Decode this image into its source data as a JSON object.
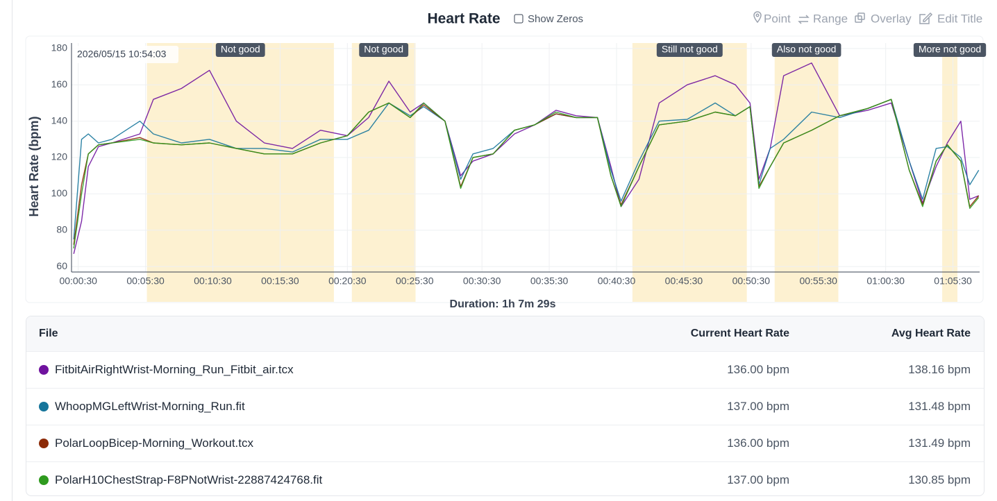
{
  "chart_data": {
    "type": "line",
    "title": "Heart Rate",
    "xlabel": "Duration: 1h 7m 29s",
    "ylabel": "Heart Rate (bpm)",
    "cursor_label": "2026/05/15 10:54:03",
    "xlim": [
      0,
      4049
    ],
    "ylim": [
      57,
      183
    ],
    "xticks": [
      {
        "value": 30,
        "label": "00:00:30"
      },
      {
        "value": 330,
        "label": "00:05:30"
      },
      {
        "value": 630,
        "label": "00:10:30"
      },
      {
        "value": 930,
        "label": "00:15:30"
      },
      {
        "value": 1230,
        "label": "00:20:30"
      },
      {
        "value": 1530,
        "label": "00:25:30"
      },
      {
        "value": 1830,
        "label": "00:30:30"
      },
      {
        "value": 2130,
        "label": "00:35:30"
      },
      {
        "value": 2430,
        "label": "00:40:30"
      },
      {
        "value": 2730,
        "label": "00:45:30"
      },
      {
        "value": 3030,
        "label": "00:50:30"
      },
      {
        "value": 3330,
        "label": "00:55:30"
      },
      {
        "value": 3630,
        "label": "01:00:30"
      },
      {
        "value": 3930,
        "label": "01:05:30"
      }
    ],
    "yticks": [
      60,
      80,
      100,
      120,
      140,
      160,
      180
    ],
    "grid": true,
    "annotations": [
      {
        "label": "Not good",
        "start": 336,
        "end": 1170
      },
      {
        "label": "Not good",
        "start": 1250,
        "end": 1534
      },
      {
        "label": "Still not good",
        "start": 2501,
        "end": 3011
      },
      {
        "label": "Also not good",
        "start": 3135,
        "end": 3419
      },
      {
        "label": "More not good",
        "start": 3882,
        "end": 3950
      }
    ],
    "x": [
      10,
      45,
      75,
      120,
      180,
      305,
      365,
      490,
      615,
      735,
      860,
      985,
      1110,
      1230,
      1325,
      1415,
      1510,
      1570,
      1665,
      1735,
      1790,
      1880,
      1975,
      2065,
      2160,
      2250,
      2345,
      2405,
      2450,
      2530,
      2620,
      2745,
      2870,
      2960,
      3025,
      3065,
      3115,
      3175,
      3300,
      3425,
      3550,
      3655,
      3735,
      3795,
      3855,
      3905,
      3965,
      4005,
      4045
    ],
    "series": [
      {
        "name": "FitbitAirRightWrist-Morning_Run_Fitbit_air.tcx",
        "color": "#6f129e",
        "values": [
          67,
          85,
          115,
          126,
          128,
          133,
          152,
          158,
          168,
          140,
          128,
          125,
          135,
          132,
          142,
          162,
          145,
          150,
          140,
          110,
          118,
          122,
          133,
          138,
          146,
          143,
          142,
          115,
          93,
          108,
          150,
          160,
          165,
          160,
          150,
          108,
          125,
          165,
          172,
          143,
          146,
          150,
          118,
          95,
          115,
          128,
          140,
          97,
          99
        ]
      },
      {
        "name": "WhoopMGLeftWrist-Morning_Run.fit",
        "color": "#16759b",
        "values": [
          75,
          130,
          133,
          128,
          130,
          140,
          133,
          128,
          130,
          125,
          125,
          123,
          130,
          130,
          135,
          150,
          143,
          148,
          140,
          108,
          122,
          125,
          135,
          138,
          144,
          142,
          142,
          113,
          96,
          118,
          140,
          141,
          150,
          143,
          148,
          105,
          125,
          130,
          145,
          142,
          147,
          152,
          118,
          97,
          125,
          126,
          120,
          105,
          113
        ]
      },
      {
        "name": "PolarLoopBicep-Morning_Workout.tcx",
        "color": "#8c2a07",
        "values": [
          72,
          105,
          122,
          127,
          128,
          131,
          128,
          127,
          128,
          125,
          122,
          122,
          128,
          132,
          145,
          150,
          142,
          149,
          140,
          104,
          120,
          122,
          135,
          138,
          144,
          142,
          142,
          110,
          94,
          115,
          138,
          140,
          145,
          143,
          148,
          104,
          115,
          128,
          135,
          143,
          147,
          152,
          113,
          94,
          118,
          127,
          118,
          93,
          99
        ]
      },
      {
        "name": "PolarH10ChestStrap-F8PNotWrist-22887424768.fit",
        "color": "#2e9a1e",
        "values": [
          70,
          100,
          122,
          127,
          128,
          130,
          128,
          127,
          128,
          125,
          122,
          122,
          128,
          132,
          145,
          150,
          142,
          150,
          140,
          103,
          120,
          122,
          135,
          138,
          145,
          142,
          142,
          110,
          93,
          115,
          138,
          140,
          145,
          143,
          148,
          103,
          115,
          128,
          135,
          143,
          147,
          152,
          113,
          93,
          118,
          127,
          118,
          92,
          98
        ]
      }
    ]
  },
  "controls": {
    "show_zeros": "Show Zeros",
    "point": "Point",
    "range": "Range",
    "overlay": "Overlay",
    "edit_title": "Edit Title"
  },
  "table": {
    "headers": [
      "File",
      "Current Heart Rate",
      "Avg Heart Rate"
    ],
    "rows": [
      {
        "current": "136.00 bpm",
        "avg": "138.16 bpm"
      },
      {
        "current": "137.00 bpm",
        "avg": "131.48 bpm"
      },
      {
        "current": "136.00 bpm",
        "avg": "131.49 bpm"
      },
      {
        "current": "137.00 bpm",
        "avg": "130.85 bpm"
      }
    ]
  }
}
